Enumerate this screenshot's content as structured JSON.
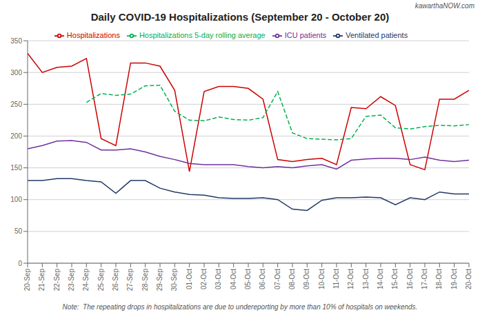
{
  "chart_data": {
    "type": "line",
    "title": "Daily COVID-19 Hospitalizations (September 20 - October 20)",
    "annotations": [
      "Note:  The repeating drops in hospitalizations are due to undereporting by more than 10% of hospitals on weekends.",
      "kawarthaNOW.com"
    ],
    "categories": [
      "20-Sep",
      "21-Sep",
      "22-Sep",
      "23-Sep",
      "24-Sep",
      "25-Sep",
      "26-Sep",
      "27-Sep",
      "28-Sep",
      "29-Sep",
      "30-Sep",
      "01-Oct",
      "02-Oct",
      "03-Oct",
      "04-Oct",
      "05-Oct",
      "06-Oct",
      "07-Oct",
      "08-Oct",
      "09-Oct",
      "10-Oct",
      "11-Oct",
      "12-Oct",
      "13-Oct",
      "14-Oct",
      "15-Oct",
      "16-Oct",
      "17-Oct",
      "18-Oct",
      "19-Oct",
      "20-Oct"
    ],
    "series": [
      {
        "name": "Hospitalizations",
        "color": "#cc0000",
        "values": [
          330,
          300,
          308,
          310,
          322,
          196,
          185,
          315,
          315,
          310,
          272,
          144,
          270,
          278,
          278,
          275,
          258,
          163,
          160,
          163,
          165,
          155,
          245,
          243,
          262,
          248,
          155,
          147,
          258,
          258,
          272
        ]
      },
      {
        "name": "ICU patients",
        "color": "#7030a0",
        "values": [
          180,
          185,
          192,
          193,
          190,
          178,
          178,
          180,
          175,
          168,
          163,
          157,
          155,
          155,
          155,
          152,
          150,
          152,
          150,
          153,
          155,
          148,
          162,
          164,
          165,
          165,
          163,
          167,
          162,
          160,
          162
        ]
      },
      {
        "name": "Ventilated patients",
        "color": "#1f3864",
        "values": [
          130,
          130,
          133,
          133,
          130,
          128,
          110,
          130,
          130,
          118,
          112,
          108,
          107,
          103,
          102,
          102,
          103,
          100,
          85,
          83,
          99,
          103,
          103,
          104,
          103,
          92,
          103,
          100,
          112,
          109,
          109
        ]
      },
      {
        "name": "Hospitalizations 5-day rolling average",
        "color": "#00b050",
        "line_style": "dashed",
        "values": [
          null,
          null,
          null,
          null,
          253,
          267,
          264,
          266,
          279,
          280,
          239,
          225,
          224,
          230,
          226,
          225,
          229,
          270,
          205,
          196,
          195,
          194,
          196,
          231,
          233,
          213,
          211,
          215,
          217,
          216,
          218
        ]
      }
    ],
    "ylim": [
      0,
      350
    ],
    "yticks": [
      0,
      50,
      100,
      150,
      200,
      250,
      300,
      350
    ],
    "grid": true,
    "legend": "top"
  }
}
